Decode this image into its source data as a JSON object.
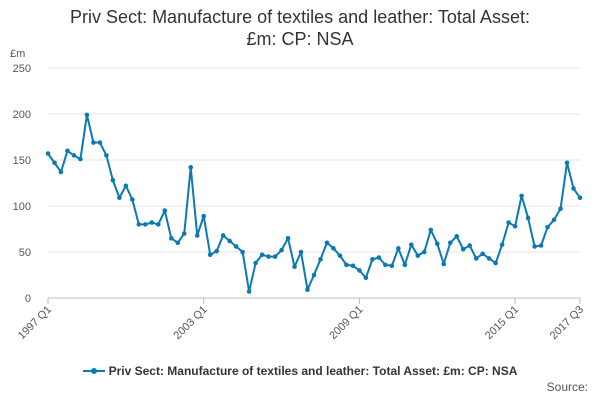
{
  "chart_data": {
    "type": "line",
    "title_lines": [
      "Priv Sect: Manufacture of textiles and leather: Total Asset:",
      "£m: CP: NSA"
    ],
    "ylabel": "£m",
    "ylim": [
      0,
      250
    ],
    "yticks": [
      0,
      50,
      100,
      150,
      200,
      250
    ],
    "xtick_labels": [
      {
        "label": "1997 Q1",
        "index": 0
      },
      {
        "label": "2003 Q1",
        "index": 24
      },
      {
        "label": "2009 Q1",
        "index": 48
      },
      {
        "label": "2015 Q1",
        "index": 72
      },
      {
        "label": "2017 Q3",
        "index": 82
      }
    ],
    "grid": "horizontal",
    "legend_position": "bottom",
    "series": [
      {
        "name": "Priv Sect: Manufacture of textiles and leather: Total Asset: £m: CP: NSA",
        "color": "#0a7ab0",
        "x": [
          "1997 Q1",
          "1997 Q2",
          "1997 Q3",
          "1997 Q4",
          "1998 Q1",
          "1998 Q2",
          "1998 Q3",
          "1998 Q4",
          "1999 Q1",
          "1999 Q2",
          "1999 Q3",
          "1999 Q4",
          "2000 Q1",
          "2000 Q2",
          "2000 Q3",
          "2000 Q4",
          "2001 Q1",
          "2001 Q2",
          "2001 Q3",
          "2001 Q4",
          "2002 Q1",
          "2002 Q2",
          "2002 Q3",
          "2002 Q4",
          "2003 Q1",
          "2003 Q2",
          "2003 Q3",
          "2003 Q4",
          "2004 Q1",
          "2004 Q2",
          "2004 Q3",
          "2004 Q4",
          "2005 Q1",
          "2005 Q2",
          "2005 Q3",
          "2005 Q4",
          "2006 Q1",
          "2006 Q2",
          "2006 Q3",
          "2006 Q4",
          "2007 Q1",
          "2007 Q2",
          "2007 Q3",
          "2007 Q4",
          "2008 Q1",
          "2008 Q2",
          "2008 Q3",
          "2008 Q4",
          "2009 Q1",
          "2009 Q2",
          "2009 Q3",
          "2009 Q4",
          "2010 Q1",
          "2010 Q2",
          "2010 Q3",
          "2010 Q4",
          "2011 Q1",
          "2011 Q2",
          "2011 Q3",
          "2011 Q4",
          "2012 Q1",
          "2012 Q2",
          "2012 Q3",
          "2012 Q4",
          "2013 Q1",
          "2013 Q2",
          "2013 Q3",
          "2013 Q4",
          "2014 Q1",
          "2014 Q2",
          "2014 Q3",
          "2014 Q4",
          "2015 Q1",
          "2015 Q2",
          "2015 Q3",
          "2015 Q4",
          "2016 Q1",
          "2016 Q2",
          "2016 Q3",
          "2016 Q4",
          "2017 Q1",
          "2017 Q2",
          "2017 Q3"
        ],
        "values": [
          157,
          147,
          137,
          160,
          155,
          151,
          199,
          169,
          169,
          155,
          128,
          109,
          122,
          107,
          80,
          80,
          82,
          80,
          95,
          65,
          60,
          70,
          142,
          68,
          89,
          47,
          51,
          68,
          62,
          56,
          50,
          7,
          38,
          47,
          45,
          45,
          52,
          65,
          34,
          50,
          9,
          25,
          42,
          60,
          54,
          46,
          36,
          35,
          30,
          22,
          42,
          44,
          36,
          35,
          54,
          36,
          58,
          46,
          50,
          74,
          59,
          37,
          60,
          67,
          53,
          57,
          43,
          48,
          43,
          38,
          58,
          82,
          78,
          111,
          87,
          56,
          57,
          77,
          85,
          97,
          147,
          119,
          109
        ]
      }
    ]
  },
  "legend": {
    "label": "Priv Sect: Manufacture of textiles and leather: Total Asset: £m: CP: NSA"
  },
  "footer": {
    "source_label": "Source:"
  }
}
